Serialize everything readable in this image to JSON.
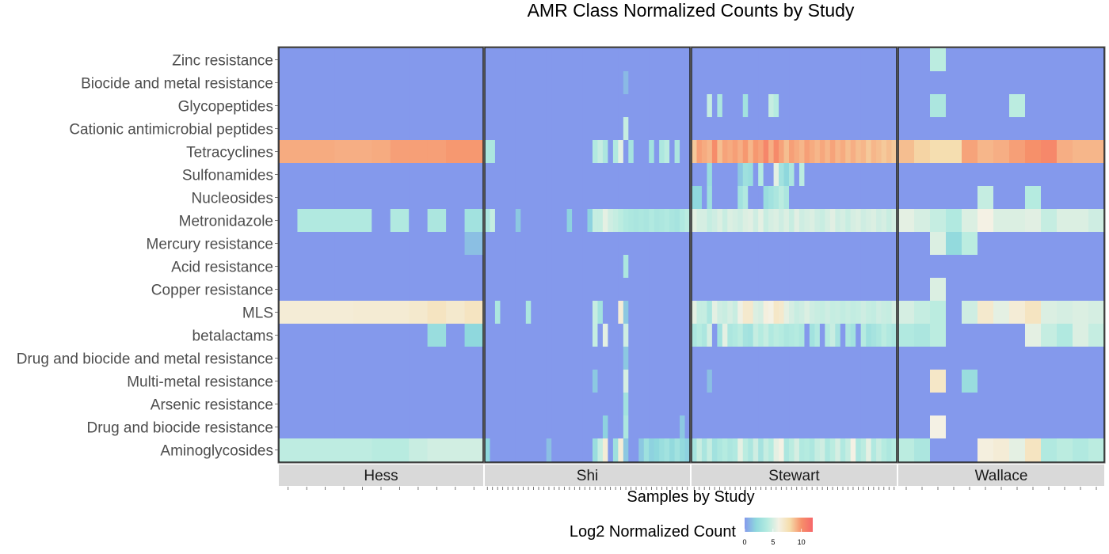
{
  "chart_data": {
    "type": "heatmap",
    "title": "AMR Class Normalized Counts by Study",
    "xlabel": "Samples by Study",
    "legend": {
      "title": "Log2 Normalized Count",
      "ticks": [
        0,
        5,
        10
      ],
      "range": [
        0,
        12
      ],
      "colors": [
        "#8499ec",
        "#8fd8dd",
        "#b5ebe0",
        "#f4f1e4",
        "#f5dcaa",
        "#f6906a",
        "#f6676a"
      ]
    },
    "rows": [
      "Zinc resistance",
      "Biocide and metal resistance",
      "Glycopeptides",
      "Cationic antimicrobial peptides",
      "Tetracyclines",
      "Sulfonamides",
      "Nucleosides",
      "Metronidazole",
      "Mercury resistance",
      "Acid resistance",
      "Copper resistance",
      "MLS",
      "betalactams",
      "Drug and biocide and metal resistance",
      "Multi-metal resistance",
      "Arsenic resistance",
      "Drug and biocide resistance",
      "Aminoglycosides"
    ],
    "panels": [
      {
        "study": "Hess",
        "n": 11,
        "values": {
          "Tetracyclines": [
            9.3,
            9.3,
            9.3,
            9.2,
            9.2,
            9.3,
            9.6,
            9.6,
            9.6,
            9.8,
            9.8
          ],
          "Metronidazole": [
            0,
            3.8,
            3.8,
            3.8,
            3.8,
            0,
            3.8,
            0,
            3.5,
            0,
            3
          ]
        },
        "extra": [
          [
            "Mercury resistance",
            10,
            1.2
          ],
          [
            "MLS",
            0,
            6.5
          ],
          [
            "MLS",
            1,
            6.5
          ],
          [
            "MLS",
            2,
            6.5
          ],
          [
            "MLS",
            3,
            6.5
          ],
          [
            "MLS",
            4,
            6.6
          ],
          [
            "MLS",
            5,
            6.6
          ],
          [
            "MLS",
            6,
            6.6
          ],
          [
            "MLS",
            7,
            6.8
          ],
          [
            "MLS",
            8,
            7.2
          ],
          [
            "MLS",
            9,
            6.8
          ],
          [
            "MLS",
            10,
            7.2
          ],
          [
            "betalactams",
            8,
            2.5
          ],
          [
            "betalactams",
            10,
            2.0
          ],
          [
            "Aminoglycosides",
            0,
            4.3
          ],
          [
            "Aminoglycosides",
            1,
            4.3
          ],
          [
            "Aminoglycosides",
            2,
            4.3
          ],
          [
            "Aminoglycosides",
            3,
            4.3
          ],
          [
            "Aminoglycosides",
            4,
            4.3
          ],
          [
            "Aminoglycosides",
            5,
            4.1
          ],
          [
            "Aminoglycosides",
            6,
            4.1
          ],
          [
            "Aminoglycosides",
            7,
            4.6
          ],
          [
            "Aminoglycosides",
            8,
            4.9
          ],
          [
            "Aminoglycosides",
            9,
            4.9
          ],
          [
            "Aminoglycosides",
            10,
            4.9
          ]
        ]
      },
      {
        "study": "Shi",
        "n": 40,
        "values": {
          "Tetracyclines": [
            3.5,
            3.5,
            0,
            0,
            0,
            0,
            0,
            0,
            0,
            0,
            0,
            0,
            0,
            0,
            0,
            0,
            0,
            0,
            0,
            0,
            0,
            3.8,
            4.5,
            3.5,
            0,
            3.8,
            5.5,
            0,
            3.2,
            0,
            0,
            0,
            3.0,
            0,
            3.6,
            4.2,
            0,
            3.5,
            0,
            0
          ],
          "Metronidazole": [
            3.5,
            4.5,
            0,
            0,
            0,
            0,
            1.5,
            0,
            0,
            0,
            0,
            0,
            0,
            0,
            0,
            0,
            1.8,
            0,
            0,
            0,
            1.8,
            4.5,
            4.5,
            5.5,
            4.8,
            4.5,
            4.2,
            3.8,
            3.6,
            3.4,
            3.6,
            3.4,
            3.8,
            3.4,
            3.6,
            3.8,
            3.4,
            3.2,
            3.8,
            4.2
          ],
          "MLS": [
            0,
            0,
            3.5,
            0,
            0,
            0,
            0,
            0,
            3.5,
            0,
            0,
            0,
            0,
            0,
            0,
            0,
            0,
            0,
            0,
            0,
            0,
            4.5,
            3.0,
            0,
            0,
            0,
            6.5,
            1.5,
            0,
            0,
            0,
            0,
            0,
            0,
            0,
            0,
            0,
            0,
            0,
            0
          ],
          "Aminoglycosides": [
            2.0,
            0,
            0,
            0,
            0,
            0,
            0,
            0,
            0,
            0,
            0,
            0,
            1.2,
            0,
            0,
            0,
            0,
            0,
            0,
            0,
            0,
            2.5,
            4.5,
            6.5,
            0,
            2.8,
            6.5,
            1.5,
            0,
            0,
            1.5,
            2.8,
            1.8,
            2.0,
            2.6,
            3.0,
            2.2,
            3.0,
            2.2,
            1.8
          ]
        },
        "extra": [
          [
            "Biocide and metal resistance",
            27,
            1.0
          ],
          [
            "Cationic antimicrobial peptides",
            27,
            4.5
          ],
          [
            "Acid resistance",
            27,
            3.5
          ],
          [
            "betalactams",
            21,
            4.5
          ],
          [
            "betalactams",
            23,
            5.5
          ],
          [
            "betalactams",
            27,
            4.8
          ],
          [
            "Drug and biocide and metal resistance",
            27,
            1.5
          ],
          [
            "Multi-metal resistance",
            21,
            1.5
          ],
          [
            "Multi-metal resistance",
            27,
            5.0
          ],
          [
            "Arsenic resistance",
            27,
            3.0
          ],
          [
            "Drug and biocide resistance",
            23,
            1.8
          ],
          [
            "Drug and biocide resistance",
            27,
            3.5
          ],
          [
            "Drug and biocide resistance",
            38,
            1.5
          ]
        ]
      },
      {
        "study": "Stewart",
        "n": 40,
        "values": {
          "Tetracyclines": [
            8.5,
            9.6,
            9.3,
            9.0,
            10.2,
            8.8,
            9.5,
            9.3,
            9.6,
            9.2,
            9.8,
            9.0,
            9.8,
            9.5,
            10.5,
            9.2,
            10.3,
            9.5,
            8.8,
            9.6,
            9.3,
            9.0,
            9.6,
            9.3,
            9.0,
            9.4,
            9.0,
            9.5,
            9.0,
            9.3,
            8.8,
            9.2,
            8.8,
            9.0,
            8.5,
            9.0,
            8.8,
            8.5,
            8.8,
            8.5
          ],
          "Metronidazole": [
            5.5,
            5.0,
            5.0,
            4.5,
            4.8,
            5.2,
            4.6,
            5.2,
            5.0,
            4.8,
            5.2,
            5.4,
            4.8,
            5.5,
            4.6,
            5.0,
            5.2,
            4.8,
            5.2,
            4.6,
            5.4,
            4.8,
            5.0,
            5.2,
            4.8,
            4.6,
            5.0,
            5.4,
            4.8,
            5.0,
            4.6,
            5.0,
            5.2,
            4.8,
            5.0,
            5.2,
            4.8,
            5.0,
            4.6,
            5.0
          ],
          "MLS": [
            5.5,
            4.5,
            4.5,
            3.5,
            5.5,
            4.8,
            4.6,
            5.0,
            4.6,
            5.8,
            6.8,
            6.8,
            5.2,
            5.0,
            6.2,
            6.0,
            7.0,
            6.8,
            5.5,
            5.0,
            4.6,
            4.8,
            5.2,
            4.8,
            4.6,
            4.5,
            4.8,
            4.5,
            4.6,
            4.4,
            4.6,
            4.4,
            4.5,
            4.8,
            4.5,
            4.4,
            4.8,
            4.6,
            4.5,
            5.0
          ],
          "betalactams": [
            3.5,
            4.0,
            3.5,
            5.0,
            0,
            3.0,
            5.5,
            3.5,
            3.8,
            4.2,
            3.2,
            3.0,
            4.5,
            4.0,
            4.5,
            3.8,
            4.2,
            4.0,
            3.6,
            3.8,
            4.0,
            3.6,
            0,
            3.0,
            3.8,
            0,
            4.0,
            4.6,
            3.2,
            0,
            3.5,
            3.0,
            0,
            4.0,
            2.8,
            3.2,
            3.6,
            4.2,
            3.8,
            3.5
          ],
          "Aminoglycosides": [
            3.2,
            4.6,
            3.4,
            4.5,
            3.0,
            3.6,
            4.0,
            3.5,
            3.8,
            5.5,
            4.2,
            3.5,
            4.8,
            3.2,
            4.5,
            4.0,
            5.5,
            6.0,
            3.5,
            4.2,
            5.0,
            3.8,
            4.0,
            3.6,
            4.5,
            4.8,
            3.6,
            4.2,
            5.0,
            3.8,
            4.5,
            6.0,
            3.6,
            4.2,
            5.5,
            3.8,
            4.6,
            4.0,
            3.6,
            4.0
          ]
        },
        "extra": [
          [
            "Glycopeptides",
            3,
            4.5
          ],
          [
            "Glycopeptides",
            5,
            3.5
          ],
          [
            "Glycopeptides",
            10,
            3.0
          ],
          [
            "Glycopeptides",
            15,
            4.5
          ],
          [
            "Glycopeptides",
            16,
            4.0
          ],
          [
            "Sulfonamides",
            3,
            2.5
          ],
          [
            "Sulfonamides",
            9,
            1.5
          ],
          [
            "Sulfonamides",
            10,
            2.8
          ],
          [
            "Sulfonamides",
            11,
            2.5
          ],
          [
            "Sulfonamides",
            13,
            4.0
          ],
          [
            "Sulfonamides",
            16,
            5.5
          ],
          [
            "Sulfonamides",
            17,
            3.0
          ],
          [
            "Sulfonamides",
            18,
            2.0
          ],
          [
            "Sulfonamides",
            19,
            3.5
          ],
          [
            "Sulfonamides",
            21,
            4.2
          ],
          [
            "Nucleosides",
            0,
            2.0
          ],
          [
            "Nucleosides",
            1,
            2.0
          ],
          [
            "Nucleosides",
            3,
            2.8
          ],
          [
            "Nucleosides",
            9,
            3.0
          ],
          [
            "Nucleosides",
            10,
            3.8
          ],
          [
            "Nucleosides",
            14,
            2.5
          ],
          [
            "Nucleosides",
            15,
            3.0
          ],
          [
            "Nucleosides",
            16,
            3.5
          ],
          [
            "Nucleosides",
            17,
            4.2
          ],
          [
            "Nucleosides",
            18,
            3.5
          ],
          [
            "Multi-metal resistance",
            3,
            1.2
          ]
        ]
      },
      {
        "study": "Wallace",
        "n": 13,
        "values": {
          "Tetracyclines": [
            8.8,
            8.2,
            7.8,
            7.8,
            9.5,
            9.0,
            9.2,
            9.6,
            10.0,
            10.4,
            9.2,
            9.0,
            9.0
          ],
          "Metronidazole": [
            5.5,
            5.0,
            4.5,
            3.8,
            5.2,
            6.0,
            5.2,
            5.2,
            5.4,
            4.5,
            5.2,
            5.2,
            4.8
          ],
          "MLS": [
            5.0,
            4.5,
            4.2,
            0,
            4.8,
            6.8,
            5.5,
            6.5,
            7.2,
            5.2,
            5.0,
            5.2,
            5.0
          ],
          "betalactams": [
            3.8,
            3.5,
            4.2,
            0,
            0,
            0,
            0,
            0,
            5.5,
            4.5,
            3.8,
            5.2,
            4.5
          ],
          "Aminoglycosides": [
            4.2,
            3.5,
            0,
            0,
            0,
            6.2,
            6.5,
            5.5,
            7.2,
            3.8,
            4.2,
            3.8,
            4.2
          ]
        },
        "extra": [
          [
            "Zinc resistance",
            2,
            4.2
          ],
          [
            "Glycopeptides",
            2,
            3.5
          ],
          [
            "Glycopeptides",
            7,
            4.2
          ],
          [
            "Nucleosides",
            5,
            4.5
          ],
          [
            "Nucleosides",
            8,
            4.0
          ],
          [
            "Mercury resistance",
            2,
            5.2
          ],
          [
            "Mercury resistance",
            3,
            2.2
          ],
          [
            "Mercury resistance",
            4,
            4.2
          ],
          [
            "Copper resistance",
            2,
            5.2
          ],
          [
            "Multi-metal resistance",
            2,
            7.0
          ],
          [
            "Multi-metal resistance",
            4,
            2.5
          ],
          [
            "Drug and biocide resistance",
            2,
            6.0
          ]
        ]
      }
    ]
  }
}
